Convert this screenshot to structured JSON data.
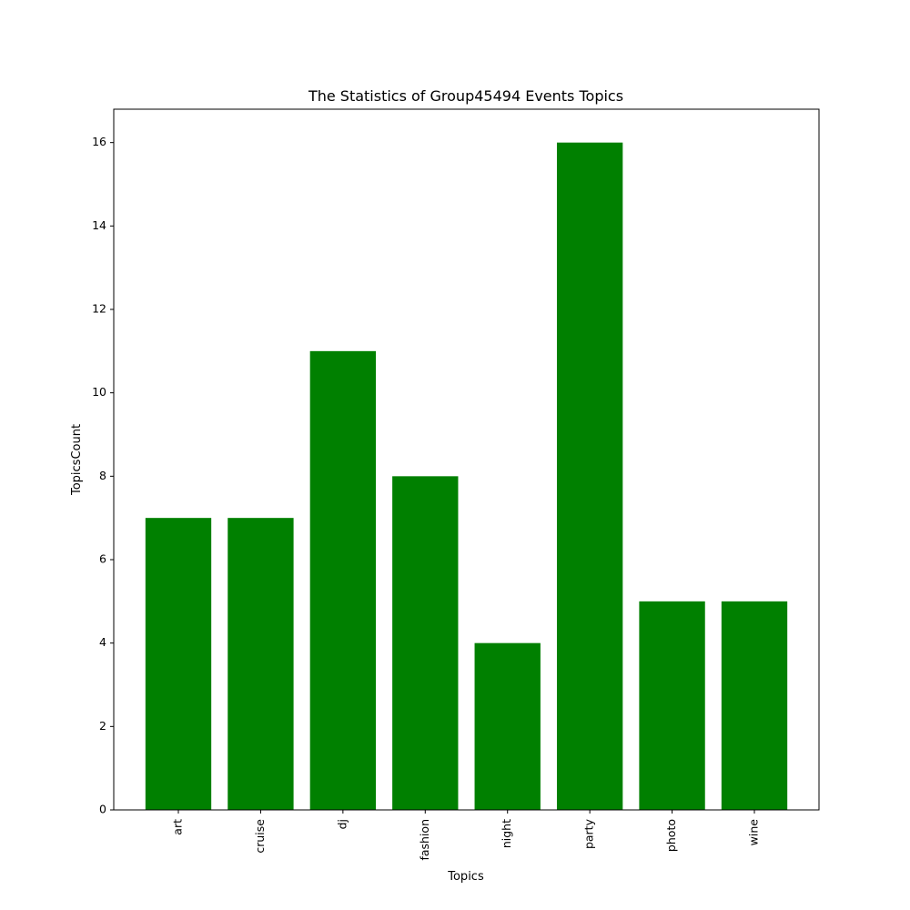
{
  "chart_data": {
    "type": "bar",
    "title": "The Statistics of Group45494 Events Topics",
    "xlabel": "Topics",
    "ylabel": "TopicsCount",
    "categories": [
      "art",
      "cruise",
      "dj",
      "fashion",
      "night",
      "party",
      "photo",
      "wine"
    ],
    "values": [
      7,
      7,
      11,
      8,
      4,
      16,
      5,
      5
    ],
    "ylim": [
      0,
      16.8
    ],
    "yticks": [
      0,
      2,
      4,
      6,
      8,
      10,
      12,
      14,
      16
    ],
    "ytick_labels": [
      "0",
      "2",
      "4",
      "6",
      "8",
      "10",
      "12",
      "14",
      "16"
    ],
    "bar_color": "#008000",
    "grid": false
  }
}
